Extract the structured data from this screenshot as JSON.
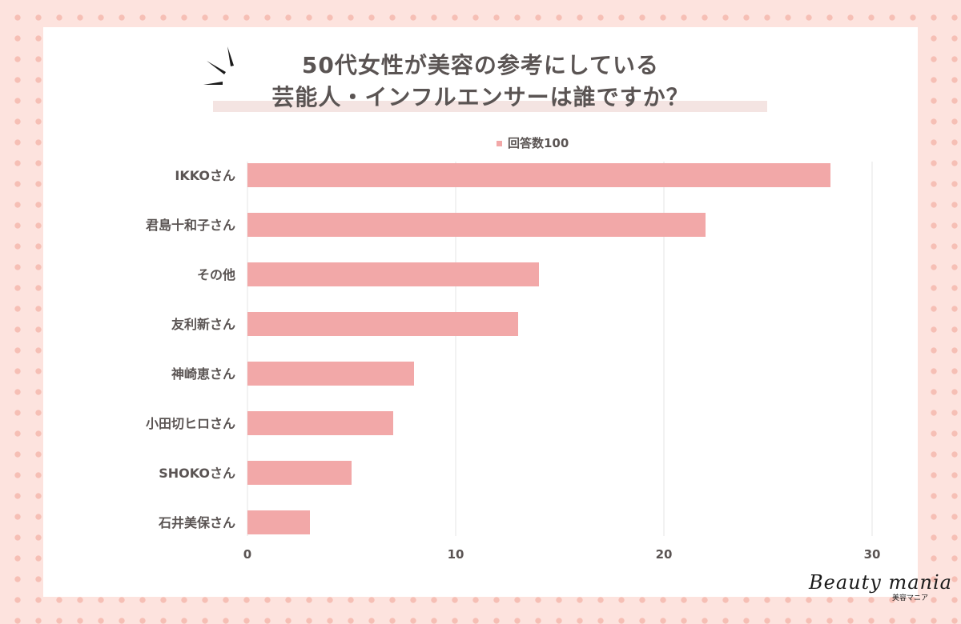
{
  "title_lines": [
    "50代女性が美容の参考にしている",
    "芸能人・インフルエンサーは誰ですか？"
  ],
  "logo": {
    "main": "Beauty mania",
    "sub": "美容マニア"
  },
  "chart_data": {
    "type": "bar",
    "orientation": "horizontal",
    "categories": [
      "IKKOさん",
      "君島十和子さん",
      "その他",
      "友利新さん",
      "神崎恵さん",
      "小田切ヒロさん",
      "SHOKOさん",
      "石井美保さん"
    ],
    "series": [
      {
        "name": "回答数100",
        "values": [
          28,
          22,
          14,
          13,
          8,
          7,
          5,
          3
        ]
      }
    ],
    "xlim": [
      0,
      32
    ],
    "x_ticks": [
      0,
      10,
      20,
      30
    ],
    "grid": true,
    "legend_position": "top-center",
    "bar_color": "#f2a8a8"
  }
}
